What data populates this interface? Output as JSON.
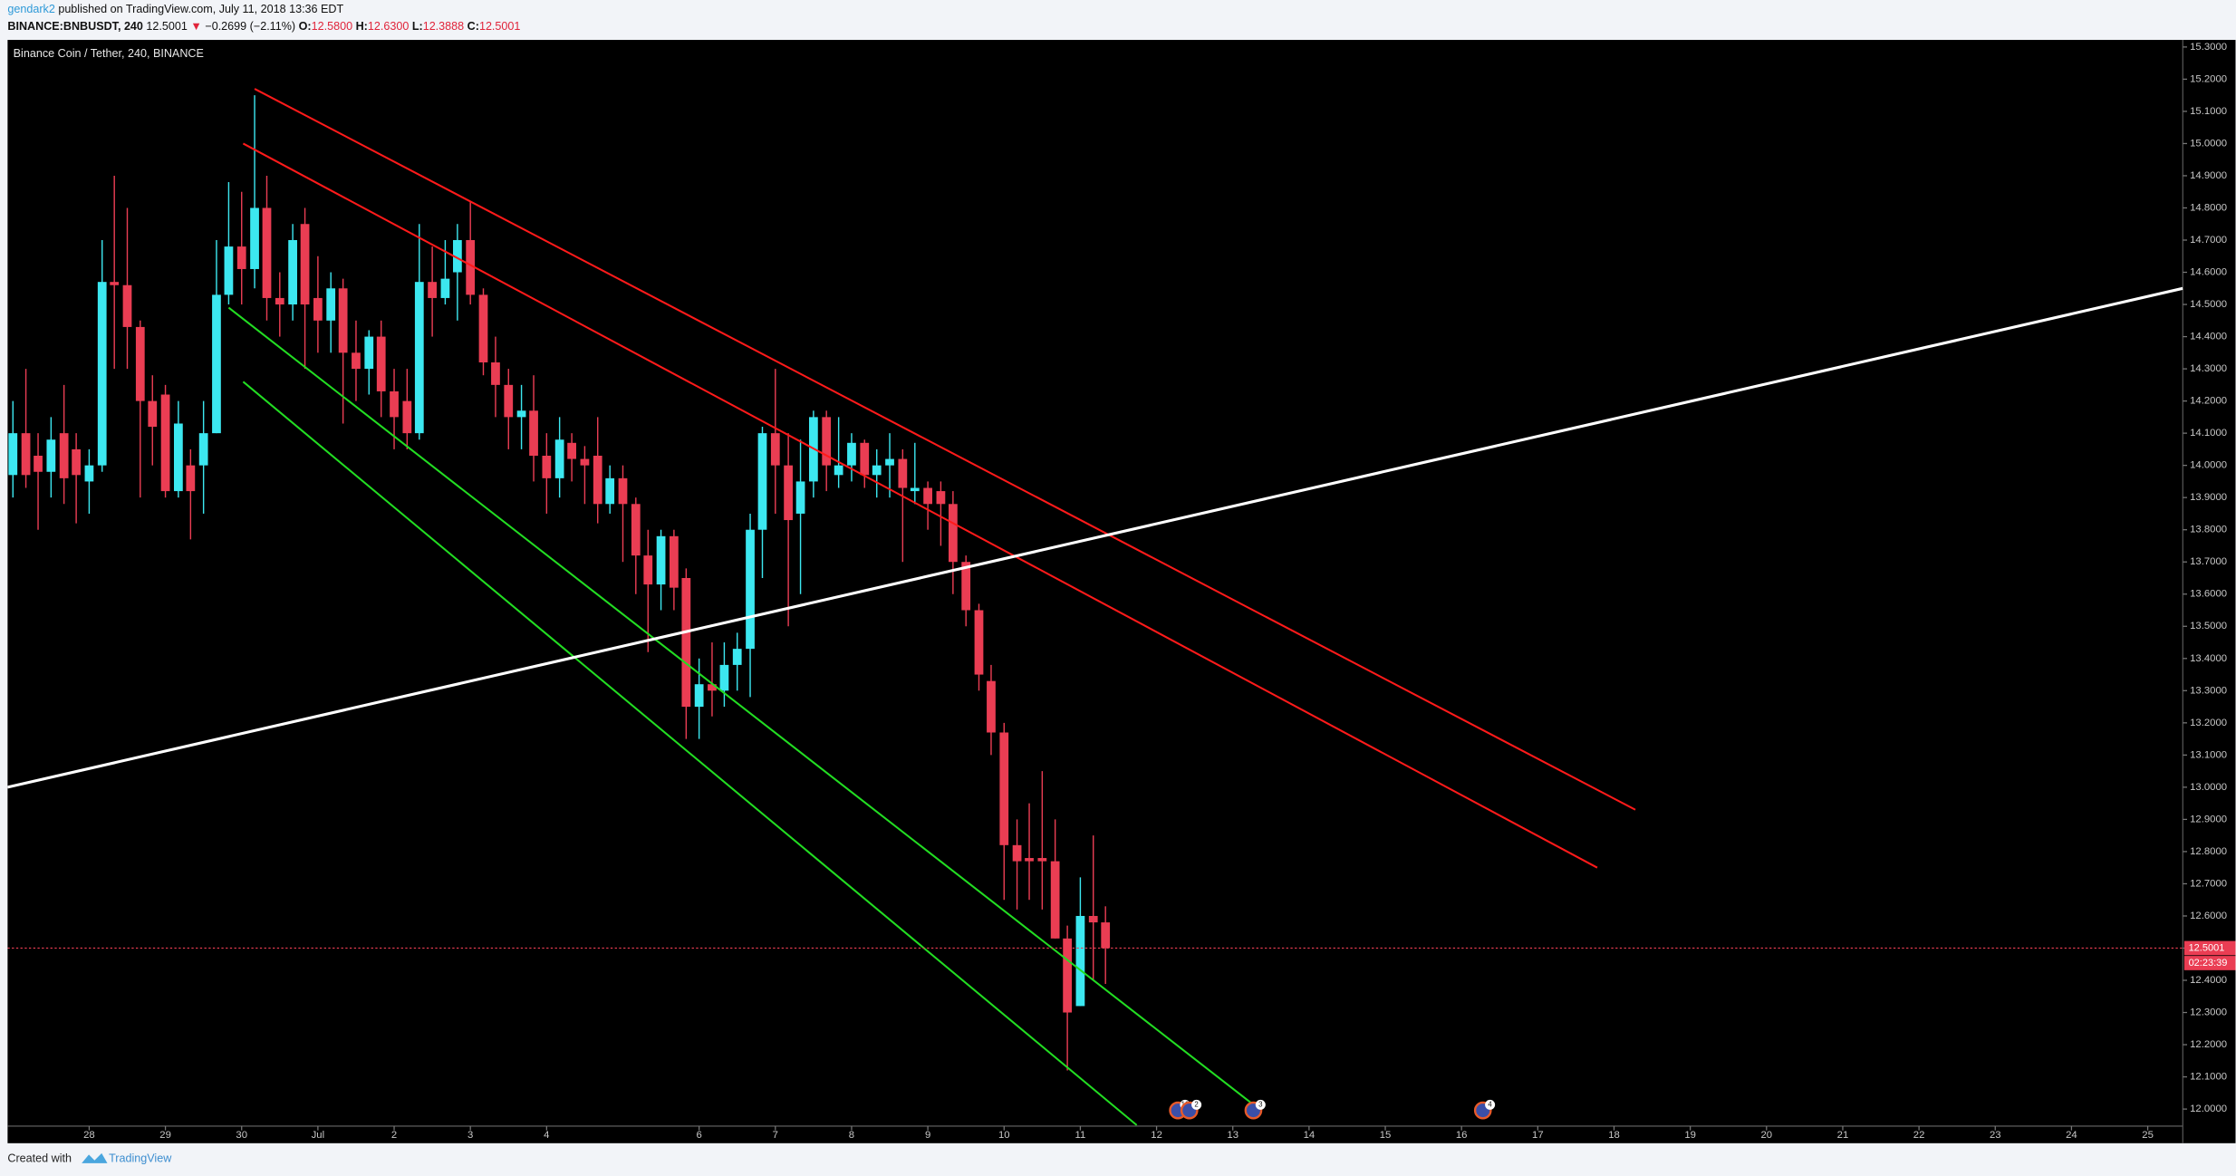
{
  "header": {
    "author": "gendark2",
    "published": "published on TradingView.com, July 11, 2018 13:36 EDT",
    "symbol": "BINANCE:BNBUSDT, 240",
    "price": "12.5001",
    "arrow": "▼",
    "change": "−0.2699 (−2.11%)",
    "ohlc": [
      {
        "key": "O:",
        "value": "12.5800"
      },
      {
        "key": "H:",
        "value": "12.6300"
      },
      {
        "key": "L:",
        "value": "12.3888"
      },
      {
        "key": "C:",
        "value": "12.5001"
      }
    ]
  },
  "chart_data": {
    "type": "candlestick",
    "title": "Binance Coin / Tether, 240, BINANCE",
    "up_color": "#3ce7f0",
    "down_color": "#ea3d53",
    "x": [
      -1,
      -0.83,
      -0.67,
      -0.5,
      -0.33,
      -0.17,
      0,
      0.17,
      0.33,
      0.5,
      0.67,
      0.83,
      1,
      1.17,
      1.33,
      1.5,
      1.67,
      1.83,
      2,
      2.17,
      2.33,
      2.5,
      2.67,
      2.83,
      3,
      3.17,
      3.33,
      3.5,
      3.67,
      3.83,
      4,
      4.17,
      4.33,
      4.5,
      4.67,
      4.83,
      5,
      5.17,
      5.33,
      5.5,
      5.67,
      5.83,
      6,
      6.17,
      6.33,
      6.5,
      6.67,
      6.83,
      7,
      7.17,
      7.33,
      7.5,
      7.67,
      7.83,
      8,
      8.17,
      8.33,
      8.5,
      8.67,
      8.83,
      9,
      9.17,
      9.33,
      9.5,
      9.67,
      9.83,
      10,
      10.17,
      10.33,
      10.5,
      10.67,
      10.83,
      11,
      11.17,
      11.33,
      11.5,
      11.67,
      11.83,
      12,
      12.17,
      12.33,
      12.5,
      12.67,
      12.83,
      13,
      13.17,
      13.33
    ],
    "open": [
      13.97,
      14.1,
      14.03,
      13.98,
      14.1,
      14.05,
      13.95,
      14.0,
      14.57,
      14.56,
      14.43,
      14.2,
      14.22,
      13.92,
      14.0,
      14.0,
      14.1,
      14.53,
      14.68,
      14.61,
      14.8,
      14.52,
      14.5,
      14.75,
      14.52,
      14.45,
      14.55,
      14.35,
      14.3,
      14.4,
      14.23,
      14.2,
      14.1,
      14.57,
      14.52,
      14.6,
      14.7,
      14.53,
      14.32,
      14.25,
      14.15,
      14.17,
      14.03,
      13.96,
      14.07,
      14.02,
      14.03,
      13.88,
      13.96,
      13.88,
      13.72,
      13.63,
      13.78,
      13.65,
      13.25,
      13.32,
      13.3,
      13.38,
      13.43,
      13.8,
      14.1,
      14.0,
      13.85,
      13.95,
      14.15,
      13.97,
      14.0,
      14.07,
      13.97,
      14.0,
      14.02,
      13.92,
      13.93,
      13.92,
      13.88,
      13.7,
      13.55,
      13.33,
      13.17,
      12.82,
      12.78,
      12.78,
      12.77,
      12.53,
      12.32,
      12.6,
      12.58
    ],
    "high": [
      14.2,
      14.3,
      14.1,
      14.15,
      14.25,
      14.1,
      14.05,
      14.7,
      14.9,
      14.8,
      14.45,
      14.28,
      14.25,
      14.2,
      14.05,
      14.2,
      14.7,
      14.88,
      14.85,
      15.15,
      14.9,
      14.6,
      14.75,
      14.8,
      14.65,
      14.6,
      14.58,
      14.45,
      14.42,
      14.45,
      14.3,
      14.3,
      14.75,
      14.68,
      14.7,
      14.75,
      14.82,
      14.55,
      14.4,
      14.3,
      14.25,
      14.28,
      14.1,
      14.15,
      14.1,
      14.06,
      14.15,
      14.0,
      14.0,
      13.9,
      13.8,
      13.8,
      13.8,
      13.68,
      13.4,
      13.45,
      13.45,
      13.48,
      13.85,
      14.12,
      14.3,
      14.1,
      14.08,
      14.17,
      14.17,
      14.15,
      14.1,
      14.08,
      14.05,
      14.1,
      14.05,
      14.07,
      13.95,
      13.95,
      13.92,
      13.72,
      13.57,
      13.38,
      13.2,
      12.9,
      12.95,
      13.05,
      12.9,
      12.57,
      12.72,
      12.85,
      12.63
    ],
    "low": [
      13.9,
      13.93,
      13.8,
      13.9,
      13.88,
      13.82,
      13.85,
      13.98,
      14.3,
      14.3,
      13.9,
      14.0,
      13.9,
      13.9,
      13.77,
      13.85,
      14.1,
      14.5,
      14.5,
      14.55,
      14.45,
      14.4,
      14.45,
      14.3,
      14.35,
      14.35,
      14.13,
      14.2,
      14.22,
      14.15,
      14.05,
      14.05,
      14.08,
      14.4,
      14.5,
      14.45,
      14.5,
      14.28,
      14.15,
      14.05,
      14.05,
      13.95,
      13.85,
      13.9,
      13.95,
      13.88,
      13.82,
      13.85,
      13.7,
      13.6,
      13.42,
      13.55,
      13.55,
      13.15,
      13.15,
      13.22,
      13.25,
      13.3,
      13.28,
      13.65,
      13.85,
      13.5,
      13.6,
      13.9,
      13.92,
      13.93,
      13.95,
      13.93,
      13.9,
      13.9,
      13.7,
      13.88,
      13.8,
      13.75,
      13.6,
      13.5,
      13.3,
      13.1,
      12.65,
      12.62,
      12.65,
      12.62,
      12.53,
      12.12,
      12.32,
      12.4,
      12.3888
    ],
    "close": [
      14.1,
      13.97,
      13.98,
      14.08,
      13.96,
      13.97,
      14.0,
      14.57,
      14.56,
      14.43,
      14.2,
      14.12,
      13.92,
      14.13,
      13.92,
      14.1,
      14.53,
      14.68,
      14.61,
      14.8,
      14.52,
      14.5,
      14.7,
      14.5,
      14.45,
      14.55,
      14.35,
      14.3,
      14.4,
      14.23,
      14.15,
      14.1,
      14.57,
      14.52,
      14.58,
      14.7,
      14.53,
      14.32,
      14.25,
      14.15,
      14.17,
      14.03,
      13.96,
      14.08,
      14.02,
      14.0,
      13.88,
      13.96,
      13.88,
      13.72,
      13.63,
      13.78,
      13.62,
      13.25,
      13.32,
      13.3,
      13.38,
      13.43,
      13.8,
      14.1,
      14.0,
      13.83,
      13.95,
      14.15,
      14.0,
      14.0,
      14.07,
      13.97,
      14.0,
      14.02,
      13.93,
      13.93,
      13.88,
      13.88,
      13.7,
      13.55,
      13.35,
      13.17,
      12.82,
      12.77,
      12.77,
      12.77,
      12.53,
      12.3,
      12.6,
      12.58,
      12.5001
    ],
    "xlim": [
      -1.07,
      27.46
    ],
    "xticks": [
      {
        "value": 0,
        "label": "28"
      },
      {
        "value": 1,
        "label": "29"
      },
      {
        "value": 2,
        "label": "30"
      },
      {
        "value": 3,
        "label": "Jul"
      },
      {
        "value": 4,
        "label": "2"
      },
      {
        "value": 5,
        "label": "3"
      },
      {
        "value": 6,
        "label": "4"
      },
      {
        "value": 8,
        "label": "6"
      },
      {
        "value": 9,
        "label": "7"
      },
      {
        "value": 10,
        "label": "8"
      },
      {
        "value": 11,
        "label": "9"
      },
      {
        "value": 12,
        "label": "10"
      },
      {
        "value": 13,
        "label": "11"
      },
      {
        "value": 14,
        "label": "12"
      },
      {
        "value": 15,
        "label": "13"
      },
      {
        "value": 16,
        "label": "14"
      },
      {
        "value": 17,
        "label": "15"
      },
      {
        "value": 18,
        "label": "16"
      },
      {
        "value": 19,
        "label": "17"
      },
      {
        "value": 20,
        "label": "18"
      },
      {
        "value": 21,
        "label": "19"
      },
      {
        "value": 22,
        "label": "20"
      },
      {
        "value": 23,
        "label": "21"
      },
      {
        "value": 24,
        "label": "22"
      },
      {
        "value": 25,
        "label": "23"
      },
      {
        "value": 26,
        "label": "24"
      },
      {
        "value": 27,
        "label": "25"
      }
    ],
    "ylim": [
      11.947,
      15.322
    ],
    "yticks": [
      {
        "value": 12,
        "label": "12.0000"
      },
      {
        "value": 12.1,
        "label": "12.1000"
      },
      {
        "value": 12.2,
        "label": "12.2000"
      },
      {
        "value": 12.3,
        "label": "12.3000"
      },
      {
        "value": 12.4,
        "label": "12.4000"
      },
      {
        "value": 12.5,
        "label": "12.5000"
      },
      {
        "value": 12.6,
        "label": "12.6000"
      },
      {
        "value": 12.7,
        "label": "12.7000"
      },
      {
        "value": 12.8,
        "label": "12.8000"
      },
      {
        "value": 12.9,
        "label": "12.9000"
      },
      {
        "value": 13,
        "label": "13.0000"
      },
      {
        "value": 13.1,
        "label": "13.1000"
      },
      {
        "value": 13.2,
        "label": "13.2000"
      },
      {
        "value": 13.3,
        "label": "13.3000"
      },
      {
        "value": 13.4,
        "label": "13.4000"
      },
      {
        "value": 13.5,
        "label": "13.5000"
      },
      {
        "value": 13.6,
        "label": "13.6000"
      },
      {
        "value": 13.7,
        "label": "13.7000"
      },
      {
        "value": 13.8,
        "label": "13.8000"
      },
      {
        "value": 13.9,
        "label": "13.9000"
      },
      {
        "value": 14,
        "label": "14.0000"
      },
      {
        "value": 14.1,
        "label": "14.1000"
      },
      {
        "value": 14.2,
        "label": "14.2000"
      },
      {
        "value": 14.3,
        "label": "14.3000"
      },
      {
        "value": 14.4,
        "label": "14.4000"
      },
      {
        "value": 14.5,
        "label": "14.5000"
      },
      {
        "value": 14.6,
        "label": "14.6000"
      },
      {
        "value": 14.7,
        "label": "14.7000"
      },
      {
        "value": 14.8,
        "label": "14.8000"
      },
      {
        "value": 14.9,
        "label": "14.9000"
      },
      {
        "value": 15,
        "label": "15.0000"
      },
      {
        "value": 15.1,
        "label": "15.1000"
      },
      {
        "value": 15.2,
        "label": "15.2000"
      },
      {
        "value": 15.3,
        "label": "15.3000"
      }
    ],
    "grid": false,
    "last_price": 12.5001,
    "last_price_color": "#ea3d53",
    "countdown": "02:23:39",
    "drawings": [
      {
        "color": "#ff1a1a",
        "x": [
          2.17,
          20.28
        ],
        "y": [
          15.17,
          12.93
        ]
      },
      {
        "color": "#ff1a1a",
        "x": [
          2.02,
          19.78
        ],
        "y": [
          15.0,
          12.75
        ]
      },
      {
        "color": "#22dd22",
        "x": [
          1.83,
          15.29
        ],
        "y": [
          14.49,
          12.01
        ]
      },
      {
        "color": "#22dd22",
        "x": [
          2.02,
          13.74
        ],
        "y": [
          14.26,
          11.95
        ]
      },
      {
        "color": "#ffffff",
        "x": [
          -1.07,
          27.46
        ],
        "y": [
          13.0,
          14.55
        ]
      }
    ],
    "events": [
      {
        "x": 14.28,
        "label": "10"
      },
      {
        "x": 14.43,
        "label": "2"
      },
      {
        "x": 15.27,
        "label": "3"
      },
      {
        "x": 18.28,
        "label": "4"
      }
    ]
  },
  "footer": {
    "created": "Created with",
    "brand": "TradingView"
  }
}
